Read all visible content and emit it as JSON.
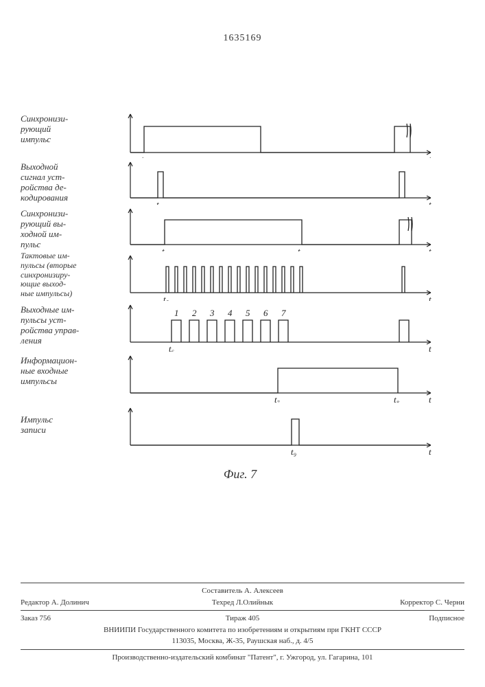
{
  "patent_number": "1635169",
  "figure_caption": "Фиг. 7",
  "signals": [
    {
      "label": "Синхронизи-\nрующий\nимпульс",
      "t_label": "t₁",
      "x_axis_t": "t"
    },
    {
      "label": "Выходной\nсигнал уст-\nройства де-\nкодирования",
      "t_label": "t₂",
      "x_axis_t": "t"
    },
    {
      "label": "Синхронизи-\nрующий вы-\nходной им-\nпульс",
      "t_label": "t₃",
      "t_label2": "t₄",
      "x_axis_t": "t"
    },
    {
      "label": "Тактовые им-\nпульсы (вторые\nсинхронизиру-\nющие выход-\nные импульсы)",
      "t_label": "t₅",
      "x_axis_t": "t"
    },
    {
      "label": "Выходные им-\nпульсы уст-\nройства управ-\nления",
      "t_label": "t₆",
      "x_axis_t": "t",
      "pulse_numbers": [
        "1",
        "2",
        "3",
        "4",
        "5",
        "6",
        "7"
      ]
    },
    {
      "label": "Информацион-\nные входные\nимпульсы",
      "t_label": "t₇",
      "t_label2": "t₈",
      "x_axis_t": "t"
    },
    {
      "label": "Импульс\nзаписи",
      "t_label": "t₉",
      "x_axis_t": "t"
    }
  ],
  "diagram_style": {
    "axis_color": "#222222",
    "background": "#ffffff",
    "line_width": 1.3,
    "label_font": "italic 13px serif"
  },
  "footer": {
    "compiler": "Составитель А. Алексеев",
    "editor": "Редактор    А. Долинич",
    "techred": "Техред Л.Олийнык",
    "corrector": "Корректор С. Черни",
    "order": "Заказ 756",
    "tirage": "Тираж   405",
    "subscription": "Подписное",
    "org_line1": "ВНИИПИ Государственного комитета по изобретениям и открытиям при ГКНТ СССР",
    "org_line2": "113035, Москва, Ж-35, Раушская наб., д. 4/5",
    "producer": "Производственно-издательский комбинат \"Патент\", г. Ужгород, ул. Гагарина, 101"
  }
}
